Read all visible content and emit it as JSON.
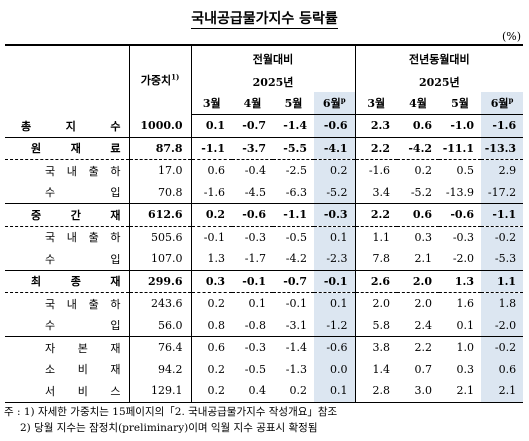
{
  "title": "국내공급물가지수 등락률",
  "unit": "(%)",
  "header": {
    "weight": "가중치",
    "weight_sup": "1)",
    "group_mom": "전월대비",
    "group_yoy": "전년동월대비",
    "year_mom": "2025년",
    "year_yoy": "2025년",
    "months": [
      "3월",
      "4월",
      "5월",
      "6월"
    ],
    "prelim_mark": "p"
  },
  "rows": [
    {
      "label": "총지수",
      "w": "1000.0",
      "v": [
        "0.1",
        "-0.7",
        "-1.4",
        "-0.6",
        "2.3",
        "0.6",
        "-1.0",
        "-1.6"
      ]
    },
    {
      "label": "원재료",
      "w": "87.8",
      "v": [
        "-1.1",
        "-3.7",
        "-5.5",
        "-4.1",
        "2.2",
        "-4.2",
        "-11.1",
        "-13.3"
      ]
    },
    {
      "label": "국내출하",
      "w": "17.0",
      "v": [
        "0.6",
        "-0.4",
        "-2.5",
        "0.2",
        "-1.6",
        "0.2",
        "0.5",
        "2.9"
      ]
    },
    {
      "label": "수입",
      "w": "70.8",
      "v": [
        "-1.6",
        "-4.5",
        "-6.3",
        "-5.2",
        "3.4",
        "-5.2",
        "-13.9",
        "-17.2"
      ]
    },
    {
      "label": "중간재",
      "w": "612.6",
      "v": [
        "0.2",
        "-0.6",
        "-1.1",
        "-0.3",
        "2.2",
        "0.6",
        "-0.6",
        "-1.1"
      ]
    },
    {
      "label": "국내출하",
      "w": "505.6",
      "v": [
        "-0.1",
        "-0.3",
        "-0.5",
        "0.1",
        "1.1",
        "0.3",
        "-0.3",
        "-0.2"
      ]
    },
    {
      "label": "수입",
      "w": "107.0",
      "v": [
        "1.3",
        "-1.7",
        "-4.2",
        "-2.3",
        "7.8",
        "2.1",
        "-2.0",
        "-5.3"
      ]
    },
    {
      "label": "최종재",
      "w": "299.6",
      "v": [
        "0.3",
        "-0.1",
        "-0.7",
        "-0.1",
        "2.6",
        "2.0",
        "1.3",
        "1.1"
      ]
    },
    {
      "label": "국내출하",
      "w": "243.6",
      "v": [
        "0.2",
        "0.1",
        "-0.1",
        "0.1",
        "2.0",
        "2.0",
        "1.6",
        "1.8"
      ]
    },
    {
      "label": "수입",
      "w": "56.0",
      "v": [
        "0.8",
        "-0.8",
        "-3.1",
        "-1.2",
        "5.8",
        "2.4",
        "0.1",
        "-2.0"
      ]
    },
    {
      "label": "자본재",
      "w": "76.4",
      "v": [
        "0.6",
        "-0.3",
        "-1.4",
        "-0.6",
        "3.8",
        "2.2",
        "1.0",
        "-0.2"
      ]
    },
    {
      "label": "소비재",
      "w": "94.2",
      "v": [
        "0.2",
        "-0.5",
        "-1.3",
        "0.0",
        "1.4",
        "0.7",
        "0.3",
        "0.6"
      ]
    },
    {
      "label": "서비스",
      "w": "129.1",
      "v": [
        "0.2",
        "0.4",
        "0.2",
        "0.1",
        "2.8",
        "3.0",
        "2.1",
        "2.1"
      ]
    }
  ],
  "notes": [
    "주 : 1) 자세한 가중치는 15페이지의「2. 국내공급물가지수 작성개요」참조",
    "2) 당월 지수는 잠정치(preliminary)이며 익월 지수 공표시 확정됨"
  ]
}
